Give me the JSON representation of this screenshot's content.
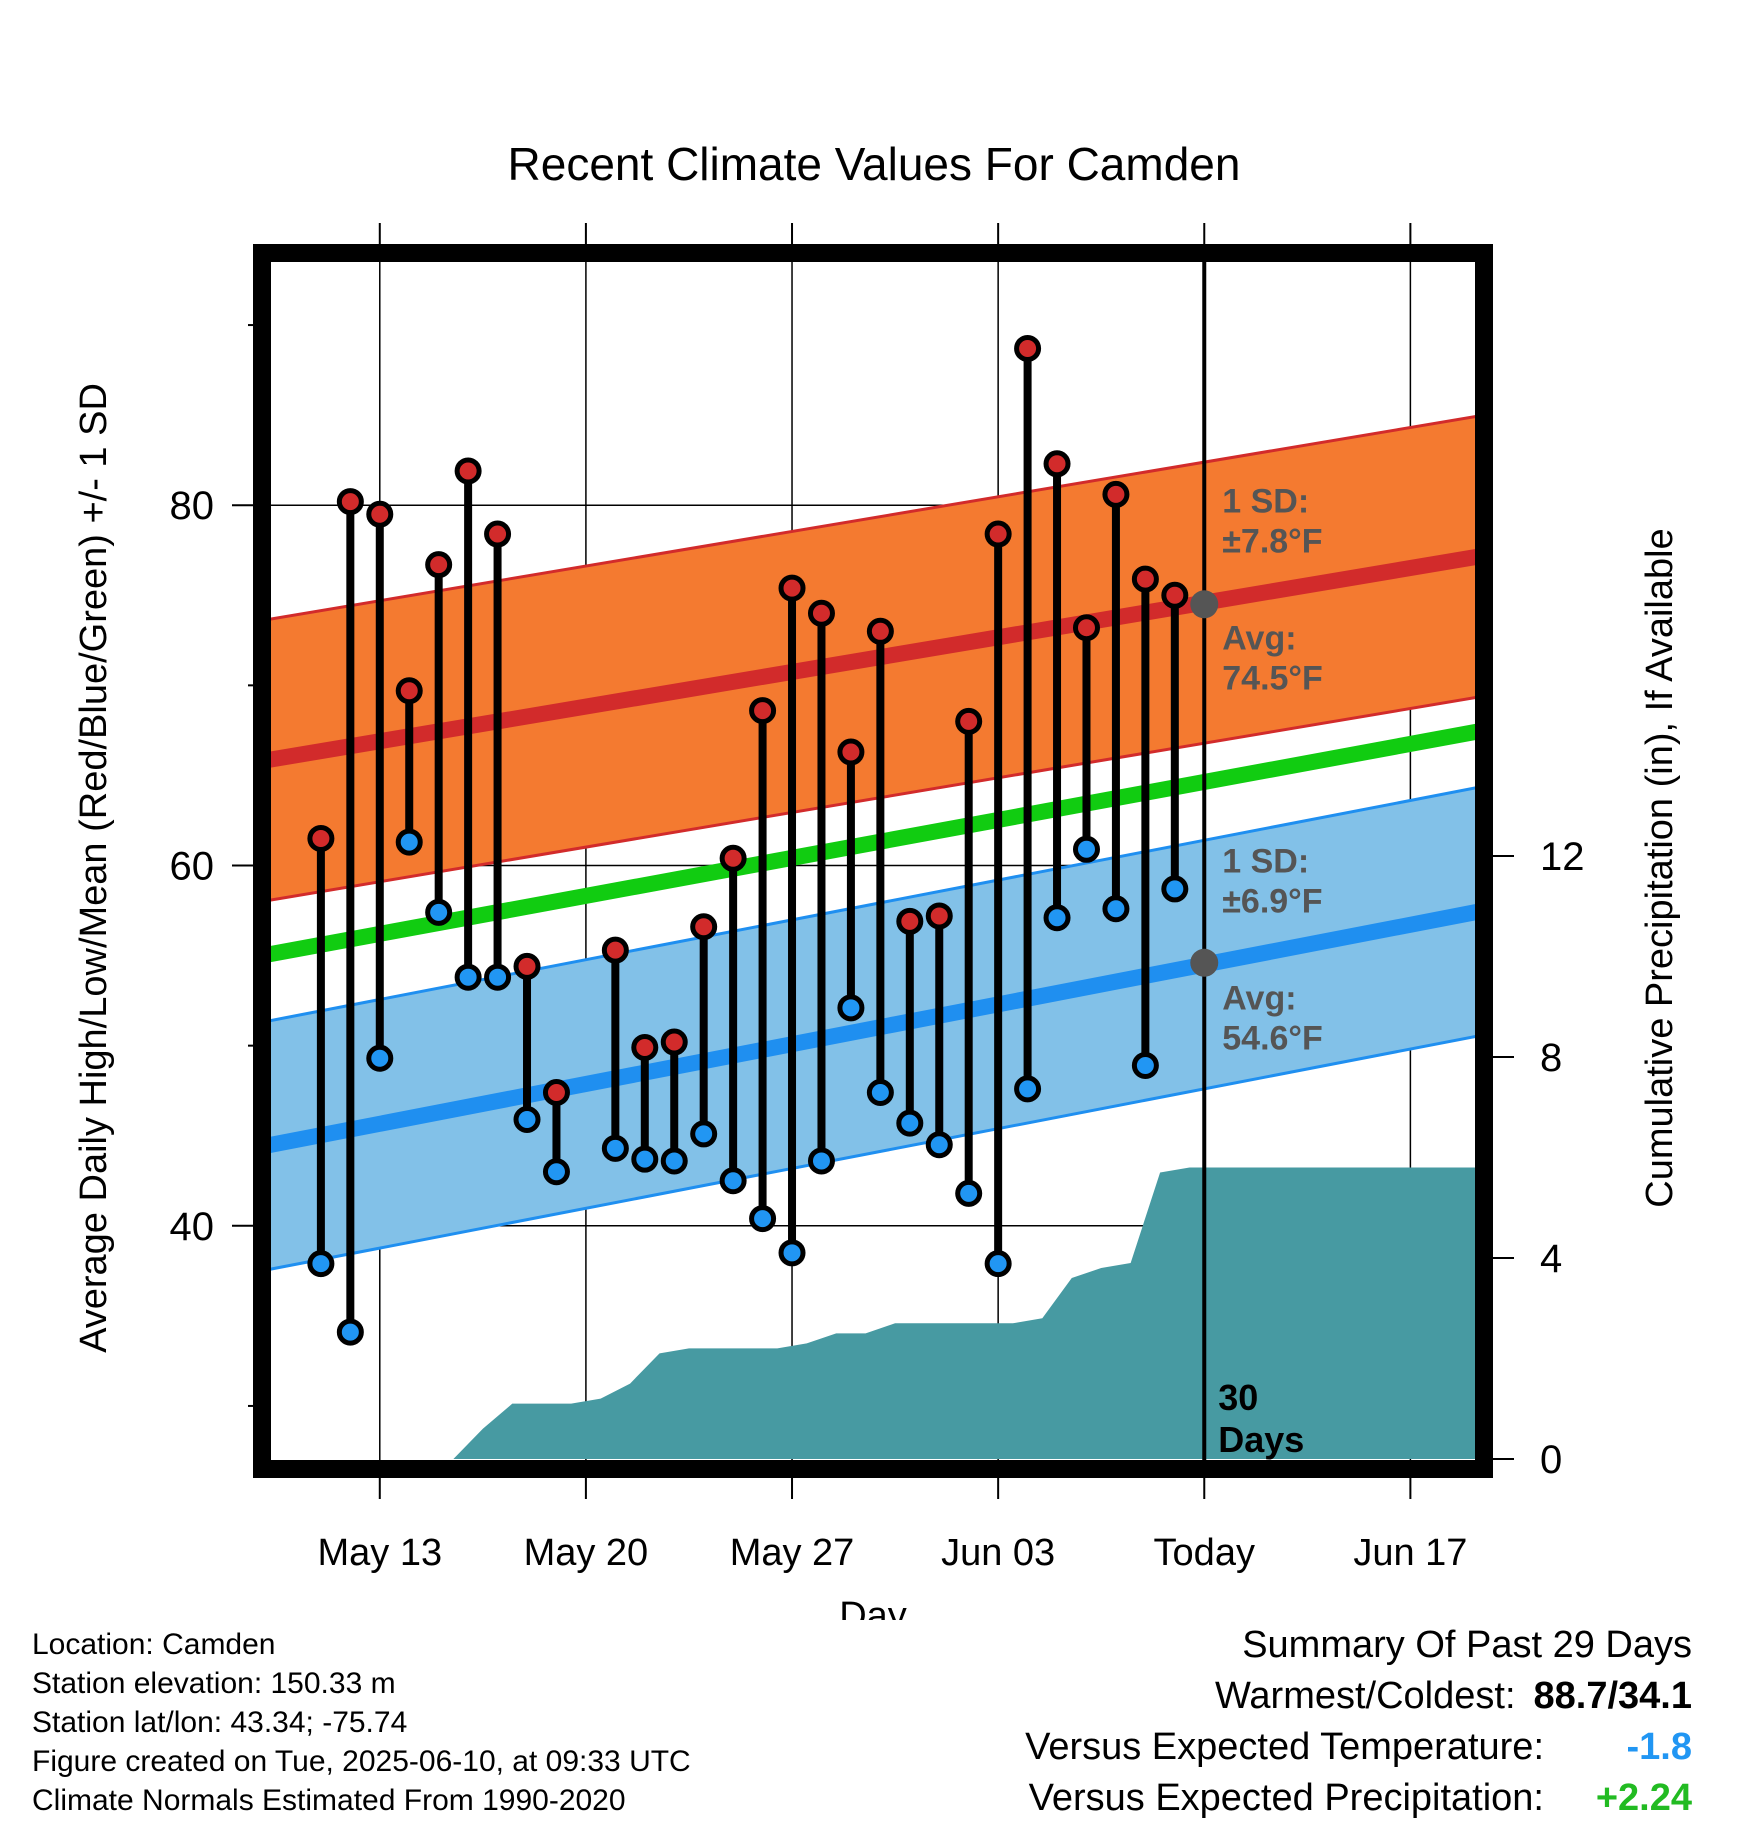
{
  "chart_data": {
    "type": "line",
    "title": "Recent Climate Values For Camden",
    "xlabel": "Day",
    "ylabel": "Average Daily High/Low/Mean (Red/Blue/Green) +/- 1 SD",
    "y2label": "Cumulative Precipitation (in), If Available",
    "ylim": [
      26.5,
      94
    ],
    "y2lim": [
      -0.2,
      24.0
    ],
    "yticks": [
      40,
      60,
      80
    ],
    "y2ticks": [
      0,
      4,
      8,
      12
    ],
    "xlim": [
      -4.0,
      37.5
    ],
    "xticks": [
      {
        "x": 0,
        "label": "May 13"
      },
      {
        "x": 7,
        "label": "May 20"
      },
      {
        "x": 14,
        "label": "May 27"
      },
      {
        "x": 21,
        "label": "Jun 03"
      },
      {
        "x": 28,
        "label": "Today"
      },
      {
        "x": 35,
        "label": "Jun 17"
      }
    ],
    "grid": true,
    "today_x": 28,
    "today_label": "30 Days",
    "normal_high": {
      "avg_start": 65.8,
      "avg_end": 77.2,
      "sd": 7.8,
      "sd_label": "1 SD: ±7.8°F",
      "avg_label": "Avg: 74.5°F",
      "avg_today": 74.5
    },
    "normal_low": {
      "avg_start": 44.4,
      "avg_end": 57.5,
      "sd": 6.9,
      "sd_label": "1 SD: ±6.9°F",
      "avg_label": "Avg: 54.6°F",
      "avg_today": 54.6
    },
    "normal_mean": {
      "start": 55.0,
      "end": 67.5
    },
    "series": [
      {
        "name": "High",
        "x": [
          -2,
          -1,
          0,
          1,
          2,
          3,
          4,
          5,
          6,
          7,
          8,
          9,
          10,
          11,
          12,
          13,
          14,
          15,
          16,
          17,
          18,
          19,
          20,
          21,
          22,
          23,
          24,
          25,
          26,
          27
        ],
        "values": [
          61.5,
          80.2,
          79.5,
          69.7,
          76.7,
          81.9,
          78.4,
          54.4,
          47.4,
          null,
          55.3,
          49.9,
          50.2,
          56.6,
          60.4,
          68.6,
          75.4,
          74.0,
          66.3,
          73.0,
          56.9,
          57.2,
          68.0,
          78.4,
          88.7,
          82.3,
          73.2,
          80.6,
          75.9,
          75.0
        ]
      },
      {
        "name": "Low",
        "x": [
          -2,
          -1,
          0,
          1,
          2,
          3,
          4,
          5,
          6,
          7,
          8,
          9,
          10,
          11,
          12,
          13,
          14,
          15,
          16,
          17,
          18,
          19,
          20,
          21,
          22,
          23,
          24,
          25,
          26,
          27
        ],
        "values": [
          37.9,
          34.1,
          49.3,
          61.3,
          57.4,
          53.8,
          53.8,
          45.9,
          43.0,
          null,
          44.3,
          43.7,
          43.6,
          45.1,
          42.5,
          40.4,
          38.5,
          43.6,
          52.1,
          47.4,
          45.7,
          44.5,
          41.8,
          37.9,
          47.6,
          57.1,
          60.9,
          57.6,
          48.9,
          58.7
        ]
      }
    ],
    "precip": {
      "x": [
        2.5,
        3.5,
        4.5,
        5.5,
        6.5,
        7.5,
        8.5,
        9.5,
        10.5,
        11.5,
        12.5,
        13.5,
        14.5,
        15.5,
        16.5,
        17.5,
        18.5,
        19.5,
        20.5,
        21.5,
        22.5,
        23.5,
        24.5,
        25.5,
        26.5,
        27.5,
        28.5,
        37.5
      ],
      "values": [
        0,
        0.6,
        1.1,
        1.1,
        1.1,
        1.2,
        1.5,
        2.1,
        2.2,
        2.2,
        2.2,
        2.2,
        2.3,
        2.5,
        2.5,
        2.7,
        2.7,
        2.7,
        2.7,
        2.7,
        2.8,
        3.6,
        3.8,
        3.9,
        5.7,
        5.8,
        5.8,
        5.8
      ]
    }
  },
  "footer": {
    "location": "Location: Camden",
    "elevation": "Station elevation: 150.33 m",
    "latlon": "Station lat/lon: 43.34; -75.74",
    "created": "Figure created on Tue, 2025-06-10, at 09:33 UTC",
    "normals": "Climate Normals Estimated From 1990-2020"
  },
  "summary": {
    "title": "Summary Of Past 29 Days",
    "warmest_label": "Warmest/Coldest:",
    "warmest_value": "88.7/34.1",
    "temp_label": "Versus Expected Temperature:",
    "temp_value": "-1.8",
    "precip_label": "Versus Expected Precipitation:",
    "precip_value": "+2.24"
  },
  "colors": {
    "high_band": "#f47a30",
    "high_line": "#d22b2b",
    "low_band": "#82c1e8",
    "low_line": "#1f8ff0",
    "mean_line": "#11cc11",
    "precip_fill": "#479aa2",
    "high_dot": "#d22b2b",
    "low_dot": "#2196f3",
    "annot_text": "#555555",
    "temp_value": "#2196f3",
    "precip_value": "#22bb22"
  }
}
